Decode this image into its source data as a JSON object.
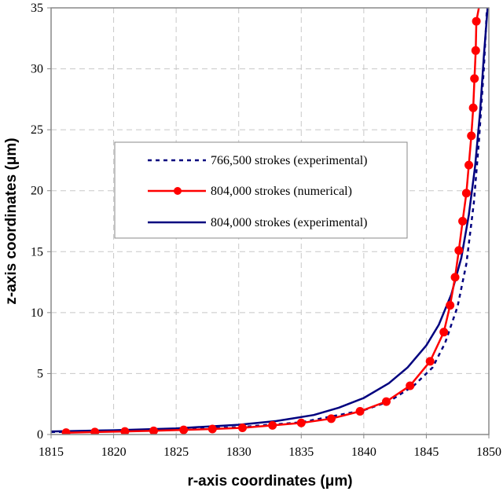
{
  "chart_data": {
    "type": "line",
    "title": "",
    "xlabel": "r-axis coordinates (μm)",
    "ylabel": "z-axis coordinates (μm)",
    "xlim": [
      1815,
      1850
    ],
    "ylim": [
      0,
      35
    ],
    "xticks": [
      1815,
      1820,
      1825,
      1830,
      1835,
      1840,
      1845,
      1850
    ],
    "yticks": [
      0,
      5,
      10,
      15,
      20,
      25,
      30,
      35
    ],
    "grid": true,
    "legend_position": "center",
    "series": [
      {
        "name": "766,500 strokes (experimental)",
        "color": "#00007f",
        "style": "dotted",
        "markers": false,
        "x": [
          1815,
          1820,
          1825,
          1830,
          1835,
          1840,
          1842,
          1844,
          1845.5,
          1846.5,
          1847.5,
          1848.2,
          1848.8,
          1849.2,
          1849.6,
          1849.85
        ],
        "y": [
          0.2,
          0.3,
          0.4,
          0.6,
          1.0,
          2.0,
          2.7,
          4.0,
          5.5,
          7.5,
          10.5,
          14.0,
          19.0,
          24.0,
          30.0,
          35.0
        ]
      },
      {
        "name": "804,000 strokes (numerical)",
        "color": "#ff0000",
        "style": "solid",
        "markers": true,
        "x": [
          1816.2,
          1818.5,
          1820.9,
          1823.2,
          1825.6,
          1827.9,
          1830.3,
          1832.7,
          1835.0,
          1837.4,
          1839.7,
          1841.8,
          1843.7,
          1845.3,
          1846.4,
          1846.9,
          1847.3,
          1847.6,
          1847.9,
          1848.2,
          1848.4,
          1848.6,
          1848.75,
          1848.85,
          1848.95,
          1849.0,
          1849.2
        ],
        "y": [
          0.15,
          0.2,
          0.25,
          0.3,
          0.38,
          0.45,
          0.55,
          0.75,
          0.95,
          1.3,
          1.9,
          2.7,
          4.0,
          6.0,
          8.4,
          10.6,
          12.9,
          15.1,
          17.5,
          19.8,
          22.1,
          24.5,
          26.8,
          29.2,
          31.5,
          33.9,
          35.0
        ],
        "marked_points": 26
      },
      {
        "name": "804,000 strokes (experimental)",
        "color": "#00007f",
        "style": "solid",
        "markers": false,
        "x": [
          1815,
          1820,
          1825,
          1830,
          1833,
          1836,
          1838,
          1840,
          1842,
          1843.5,
          1845,
          1846,
          1847,
          1847.8,
          1848.4,
          1848.9,
          1849.3,
          1849.6,
          1849.9
        ],
        "y": [
          0.25,
          0.35,
          0.5,
          0.8,
          1.1,
          1.6,
          2.2,
          3.0,
          4.2,
          5.5,
          7.3,
          9.0,
          11.5,
          14.5,
          18.0,
          22.0,
          26.5,
          31.0,
          35.0
        ]
      }
    ]
  }
}
